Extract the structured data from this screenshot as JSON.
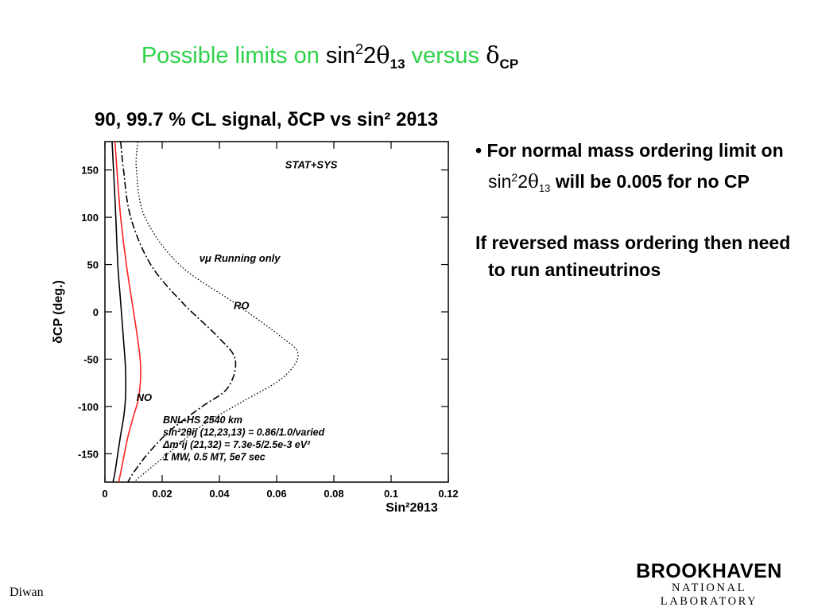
{
  "slide": {
    "title_part1": "Possible limits  on ",
    "title_sin": "sin",
    "title_sup": "2",
    "title_two": "2",
    "title_theta": "θ",
    "title_13": "13",
    "title_versus": "  versus ",
    "title_delta": "δ",
    "title_cp": "CP",
    "footer": "Diwan",
    "logo_line1": "BROOKHAVEN",
    "logo_line2": "NATIONAL LABORATORY"
  },
  "bullets": {
    "b1_bullet": "• ",
    "b1_a": "For normal mass ordering limit on ",
    "b1_sin": "sin",
    "b1_sup": "2",
    "b1_two": "2",
    "b1_theta": "θ",
    "b1_13": "13",
    "b1_b": " will be 0.005 for no CP",
    "b2": "If reversed mass ordering then need to run antineutrinos"
  },
  "chart_data": {
    "type": "line",
    "title": "90, 99.7 % CL signal, δCP vs sin² 2θ13",
    "xlabel": "Sin²2θ13",
    "ylabel": "δCP (deg.)",
    "xlim": [
      0,
      0.12
    ],
    "ylim": [
      -180,
      180
    ],
    "x_ticks": [
      "0",
      "0.02",
      "0.04",
      "0.06",
      "0.08",
      "0.1",
      "0.12"
    ],
    "y_ticks": [
      "150",
      "100",
      "50",
      "0",
      "-50",
      "-100",
      "-150"
    ],
    "x_tick_values": [
      0,
      0.02,
      0.04,
      0.06,
      0.08,
      0.1,
      0.12
    ],
    "y_tick_values": [
      150,
      100,
      50,
      0,
      -50,
      -100,
      -150
    ],
    "annotations": [
      {
        "text": "STAT+SYS",
        "x": 0.063,
        "y": 152
      },
      {
        "text": "νμ Running only",
        "x": 0.033,
        "y": 53
      },
      {
        "text": "RO",
        "x": 0.045,
        "y": 3
      },
      {
        "text": "NO",
        "x": 0.011,
        "y": -94
      }
    ],
    "info_lines": [
      "BNL-HS  2540 km",
      "sin²2θij (12,23,13) = 0.86/1.0/varied",
      "Δm²ij (21,32) = 7.3e-5/2.5e-3 eV²",
      "1 MW, 0.5 MT, 5e7 sec"
    ],
    "series": [
      {
        "color": "#000000",
        "style": "solid",
        "x": [
          0.0025,
          0.003,
          0.0038,
          0.0045,
          0.0055,
          0.0065,
          0.0072,
          0.0072,
          0.0066,
          0.0055,
          0.0045,
          0.0035,
          0.0028
        ],
        "y": [
          180,
          150,
          100,
          50,
          10,
          -30,
          -60,
          -90,
          -110,
          -130,
          -150,
          -170,
          -180
        ]
      },
      {
        "color": "#ff2020",
        "style": "solid",
        "x": [
          0.0035,
          0.0042,
          0.0055,
          0.0075,
          0.0095,
          0.0115,
          0.0125,
          0.0118,
          0.01,
          0.0082,
          0.0068,
          0.0055,
          0.0048
        ],
        "y": [
          180,
          150,
          100,
          50,
          10,
          -30,
          -60,
          -90,
          -110,
          -130,
          -150,
          -170,
          -180
        ]
      },
      {
        "color": "#000000",
        "style": "dashdot",
        "x": [
          0.0055,
          0.0065,
          0.009,
          0.016,
          0.027,
          0.039,
          0.0455,
          0.043,
          0.034,
          0.023,
          0.015,
          0.01,
          0.008
        ],
        "y": [
          180,
          150,
          100,
          50,
          10,
          -25,
          -50,
          -80,
          -100,
          -125,
          -150,
          -170,
          -180
        ]
      },
      {
        "color": "#000000",
        "style": "dotted",
        "x": [
          0.0115,
          0.011,
          0.014,
          0.026,
          0.045,
          0.061,
          0.0675,
          0.062,
          0.048,
          0.034,
          0.022,
          0.014,
          0.01
        ],
        "y": [
          180,
          150,
          100,
          50,
          10,
          -25,
          -45,
          -70,
          -95,
          -120,
          -150,
          -170,
          -180
        ]
      }
    ]
  }
}
